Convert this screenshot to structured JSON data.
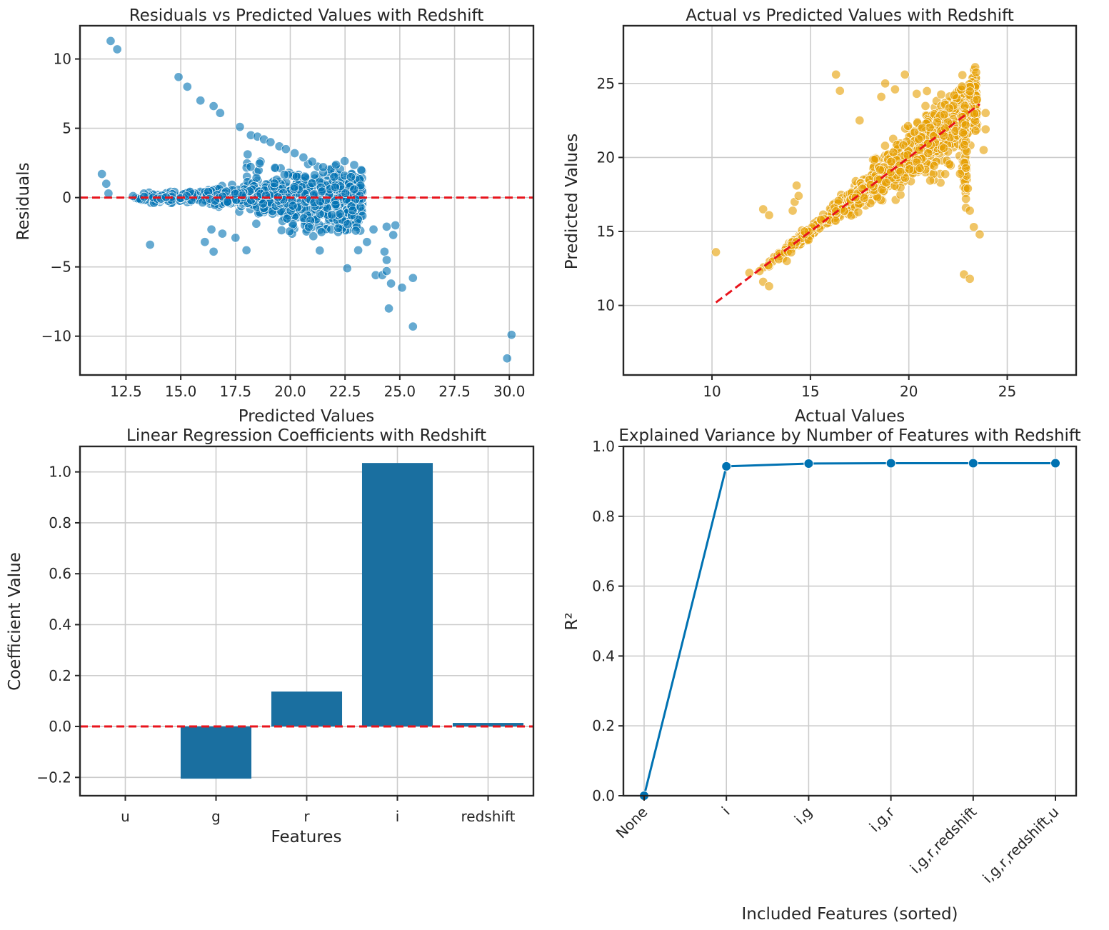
{
  "chart_data": [
    {
      "type": "scatter",
      "title": "Residuals vs Predicted Values with Redshift",
      "xlabel": "Predicted Values",
      "ylabel": "Residuals",
      "xlim": [
        10.4,
        31.1
      ],
      "ylim": [
        -12.8,
        12.4
      ],
      "xticks": [
        12.5,
        15.0,
        17.5,
        20.0,
        22.5,
        25.0,
        27.5,
        30.0
      ],
      "xtick_labels": [
        "12.5",
        "15.0",
        "17.5",
        "20.0",
        "22.5",
        "25.0",
        "27.5",
        "30.0"
      ],
      "yticks": [
        -10,
        -5,
        0,
        5,
        10
      ],
      "ytick_labels": [
        "−10",
        "−5",
        "0",
        "5",
        "10"
      ],
      "point_color": "#0072b2",
      "reference_line": {
        "y": 0,
        "color": "#e8141c",
        "style": "dashed"
      },
      "outliers": [
        [
          11.8,
          11.3
        ],
        [
          12.1,
          10.7
        ],
        [
          11.4,
          1.7
        ],
        [
          11.6,
          1.0
        ],
        [
          11.7,
          0.3
        ],
        [
          13.6,
          -3.4
        ],
        [
          14.9,
          8.7
        ],
        [
          15.3,
          8.0
        ],
        [
          15.9,
          7.0
        ],
        [
          16.5,
          6.6
        ],
        [
          16.8,
          6.1
        ],
        [
          17.7,
          5.1
        ],
        [
          16.1,
          -3.2
        ],
        [
          16.5,
          -3.9
        ],
        [
          16.4,
          -2.3
        ],
        [
          16.9,
          -2.6
        ],
        [
          17.5,
          -2.9
        ],
        [
          18.0,
          -3.8
        ],
        [
          18.2,
          4.5
        ],
        [
          18.5,
          4.4
        ],
        [
          18.8,
          4.2
        ],
        [
          19.1,
          4.0
        ],
        [
          19.5,
          3.7
        ],
        [
          19.8,
          3.5
        ],
        [
          20.2,
          3.2
        ],
        [
          20.6,
          2.9
        ],
        [
          21.0,
          2.6
        ],
        [
          21.5,
          2.2
        ],
        [
          22.0,
          1.5
        ],
        [
          22.6,
          -5.1
        ],
        [
          23.1,
          -3.8
        ],
        [
          23.5,
          -3.2
        ],
        [
          23.8,
          -2.3
        ],
        [
          23.9,
          -5.6
        ],
        [
          24.2,
          -5.6
        ],
        [
          24.3,
          -3.9
        ],
        [
          24.4,
          -2.1
        ],
        [
          24.4,
          -4.5
        ],
        [
          24.5,
          -8.0
        ],
        [
          24.6,
          -6.2
        ],
        [
          24.4,
          -5.3
        ],
        [
          24.7,
          -2.7
        ],
        [
          24.8,
          -2.0
        ],
        [
          25.1,
          -6.5
        ],
        [
          25.6,
          -5.8
        ],
        [
          25.6,
          -9.3
        ],
        [
          29.9,
          -11.6
        ],
        [
          30.1,
          -9.9
        ]
      ]
    },
    {
      "type": "scatter",
      "title": "Actual vs Predicted Values with Redshift",
      "xlabel": "Actual Values",
      "ylabel": "Predicted Values",
      "xlim": [
        5.5,
        28.5
      ],
      "ylim": [
        5.3,
        28.9
      ],
      "xticks": [
        10,
        15,
        20,
        25
      ],
      "xtick_labels": [
        "10",
        "15",
        "20",
        "25"
      ],
      "yticks": [
        10,
        15,
        20,
        25
      ],
      "ytick_labels": [
        "10",
        "15",
        "20",
        "25"
      ],
      "point_color": "#e69f00",
      "reference_line": {
        "from": [
          10.2,
          10.2
        ],
        "to": [
          23.6,
          23.6
        ],
        "color": "#e8141c",
        "style": "dashed"
      },
      "outliers": [
        [
          10.2,
          13.6
        ],
        [
          11.9,
          12.2
        ],
        [
          12.6,
          11.6
        ],
        [
          12.9,
          11.3
        ],
        [
          12.6,
          16.5
        ],
        [
          12.9,
          16.1
        ],
        [
          13.8,
          13.0
        ],
        [
          14.1,
          16.4
        ],
        [
          14.2,
          17.0
        ],
        [
          14.4,
          17.4
        ],
        [
          14.3,
          18.1
        ],
        [
          16.3,
          25.6
        ],
        [
          16.5,
          24.5
        ],
        [
          17.5,
          22.5
        ],
        [
          18.6,
          24.1
        ],
        [
          18.8,
          25.0
        ],
        [
          19.3,
          24.6
        ],
        [
          19.8,
          25.6
        ],
        [
          20.4,
          24.3
        ],
        [
          22.3,
          24.2
        ],
        [
          22.7,
          24.8
        ],
        [
          22.6,
          18.9
        ],
        [
          22.9,
          17.2
        ],
        [
          22.9,
          16.6
        ],
        [
          23.1,
          16.4
        ],
        [
          22.8,
          12.1
        ],
        [
          23.1,
          11.8
        ],
        [
          23.3,
          15.3
        ],
        [
          23.6,
          14.8
        ],
        [
          23.0,
          17.9
        ],
        [
          23.9,
          23.0
        ],
        [
          23.9,
          21.9
        ],
        [
          23.8,
          20.5
        ],
        [
          21.8,
          22.9
        ]
      ]
    },
    {
      "type": "bar",
      "title": "Linear Regression Coefficients with Redshift",
      "xlabel": "Features",
      "ylabel": "Coefficient Value",
      "categories": [
        "u",
        "g",
        "r",
        "i",
        "redshift"
      ],
      "values": [
        0.0,
        -0.205,
        0.137,
        1.035,
        0.014
      ],
      "ylim": [
        -0.272,
        1.1
      ],
      "yticks": [
        -0.2,
        0.0,
        0.2,
        0.4,
        0.6,
        0.8,
        1.0
      ],
      "ytick_labels": [
        "−0.2",
        "0.0",
        "0.2",
        "0.4",
        "0.6",
        "0.8",
        "1.0"
      ],
      "bar_color": "#1a6fa0",
      "reference_line": {
        "y": 0,
        "color": "#e8141c",
        "style": "dashed"
      }
    },
    {
      "type": "line",
      "title": "Explained Variance by Number of Features with Redshift",
      "xlabel": "Included Features (sorted)",
      "ylabel": "R²",
      "categories": [
        "None",
        "i",
        "i,g",
        "i,g,r",
        "i,g,r,redshift",
        "i,g,r,redshift,u"
      ],
      "values": [
        0.0,
        0.943,
        0.951,
        0.952,
        0.952,
        0.952
      ],
      "ylim": [
        0.0,
        1.0
      ],
      "yticks": [
        0.0,
        0.2,
        0.4,
        0.6,
        0.8,
        1.0
      ],
      "ytick_labels": [
        "0.0",
        "0.2",
        "0.4",
        "0.6",
        "0.8",
        "1.0"
      ],
      "line_color": "#0072b2"
    }
  ]
}
